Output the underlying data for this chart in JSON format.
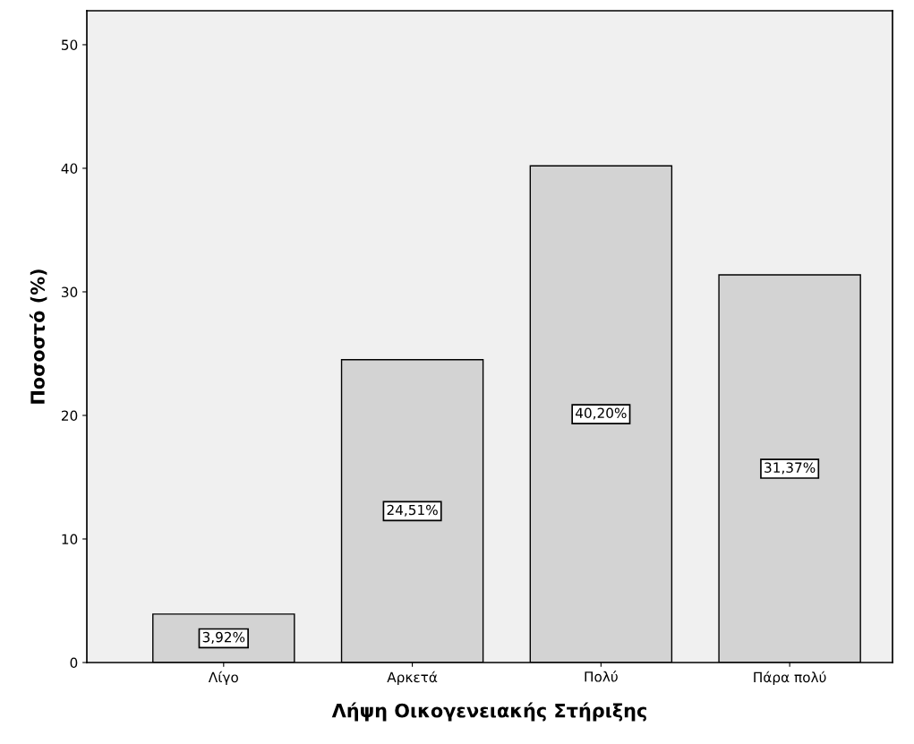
{
  "chart_data": {
    "type": "bar",
    "xlabel": "Λήψη Οικογενειακής Στήριξης",
    "ylabel": "Ποσοστό (%)",
    "categories": [
      "Λίγο",
      "Αρκετά",
      "Πολύ",
      "Πάρα πολύ"
    ],
    "values": [
      3.92,
      24.51,
      40.2,
      31.37
    ],
    "value_labels": [
      "3,92%",
      "24,51%",
      "40,20%",
      "31,37%"
    ],
    "color": "#d3d3d3",
    "ylim": [
      0,
      52.75
    ],
    "yticks": [
      0,
      10,
      20,
      30,
      40,
      50
    ],
    "grid": false
  }
}
